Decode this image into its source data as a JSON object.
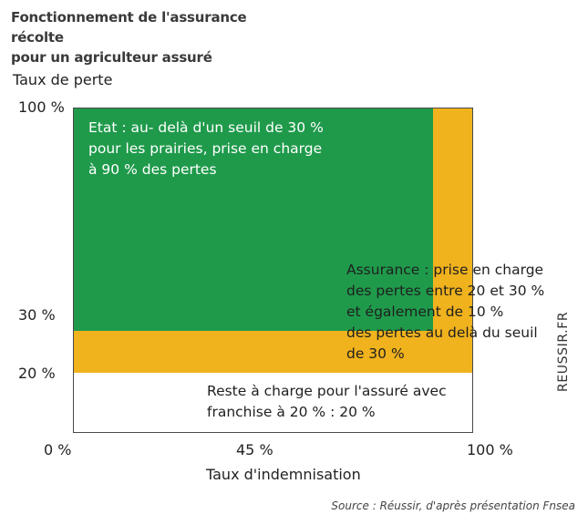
{
  "title": {
    "line1": "Fonctionnement de l'assurance récolte",
    "line2": "pour un agriculteur assuré"
  },
  "y_axis": {
    "label": "Taux de perte",
    "ticks": [
      "100 %",
      "30 %",
      "20 %"
    ]
  },
  "x_axis": {
    "label": "Taux d'indemnisation",
    "ticks": [
      "0 %",
      "45 %",
      "100 %"
    ]
  },
  "regions": {
    "etat": {
      "lines": [
        "Etat :  au- delà d'un seuil de 30 %",
        "pour les prairies, prise en charge",
        "à 90 % des pertes"
      ],
      "color": "#1f9a4b"
    },
    "assurance": {
      "lines": [
        "Assurance : prise en charge",
        "des pertes entre 20 et 30 %",
        "et également de 10 %",
        "des pertes au delà du seuil",
        "de 30 %"
      ],
      "color": "#f0b21d"
    },
    "reste": {
      "lines": [
        "Reste à charge pour l'assuré avec",
        "franchise à 20 % : 20 %"
      ],
      "color": "#ffffff"
    }
  },
  "side_label": "REUSSIR.FR",
  "source": "Source : Réussir, d'après présentation Fnsea"
}
